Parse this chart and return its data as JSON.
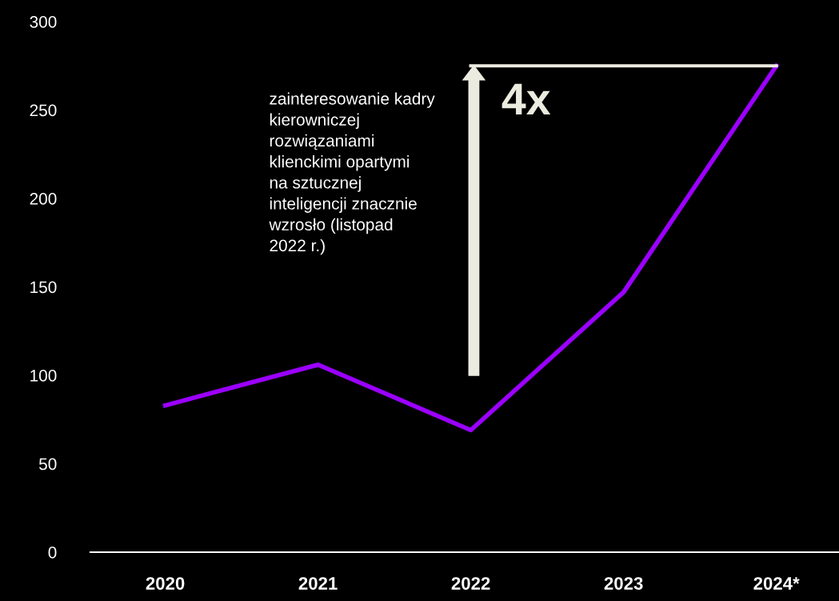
{
  "chart_data": {
    "type": "line",
    "categories": [
      "2020",
      "2021",
      "2022",
      "2023",
      "2024*"
    ],
    "series": [
      {
        "color": "#9b00ff",
        "values": [
          83,
          106,
          69,
          147,
          275
        ]
      }
    ],
    "ylim": [
      0,
      300
    ],
    "yticks": [
      0,
      50,
      100,
      150,
      200,
      250,
      300
    ],
    "grid": false,
    "legend": false,
    "marker": "none",
    "line_style": "solid",
    "annotations": [
      "zainteresowanie kadry\nkierowniczej\nrozwiązaniami\nklienckimi opartymi\nna sztucznej\ninteligencji znacznie\nwzrosło (listopad\n2022 r.)",
      "4x"
    ]
  }
}
